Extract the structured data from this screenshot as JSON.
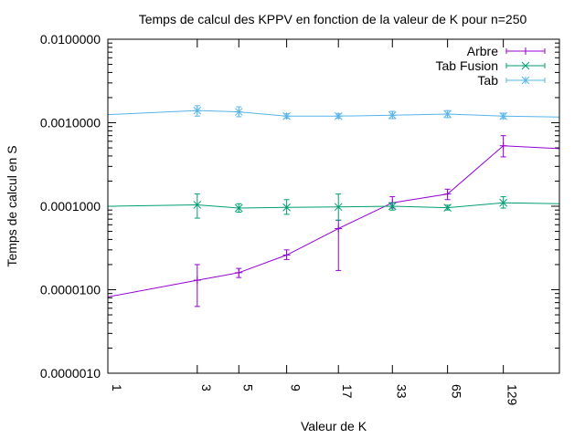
{
  "chart_data": {
    "type": "line",
    "title": "Temps de calcul des KPPV en fonction de la valeur de K pour n=250",
    "xlabel": "Valeur de K",
    "ylabel": "Temps de calcul en S",
    "x_scale": "log2",
    "y_scale": "log10",
    "xlim": [
      1,
      257
    ],
    "ylim": [
      1e-06,
      0.01
    ],
    "x_ticks": [
      {
        "value": 1,
        "label": "1"
      },
      {
        "value": 3,
        "label": "3"
      },
      {
        "value": 5,
        "label": "5"
      },
      {
        "value": 9,
        "label": "9"
      },
      {
        "value": 17,
        "label": "17"
      },
      {
        "value": 33,
        "label": "33"
      },
      {
        "value": 65,
        "label": "65"
      },
      {
        "value": 129,
        "label": "129"
      }
    ],
    "y_ticks": [
      {
        "value": 1e-06,
        "label": "0.0000010"
      },
      {
        "value": 1e-05,
        "label": "0.0000100"
      },
      {
        "value": 0.0001,
        "label": "0.0001000"
      },
      {
        "value": 0.001,
        "label": "0.0010000"
      },
      {
        "value": 0.01,
        "label": "0.0100000"
      }
    ],
    "legend_position": "top-right",
    "grid": false,
    "series": [
      {
        "name": "Arbre",
        "color": "#9400d3",
        "marker": "plus",
        "points": [
          {
            "x": 1,
            "y": 8.2e-06,
            "err": null
          },
          {
            "x": 3,
            "y": 1.3e-05,
            "err": [
              6.3e-06,
              2e-05
            ]
          },
          {
            "x": 5,
            "y": 1.6e-05,
            "err": [
              1.4e-05,
              1.8e-05
            ]
          },
          {
            "x": 9,
            "y": 2.6e-05,
            "err": [
              2.3e-05,
              3e-05
            ]
          },
          {
            "x": 17,
            "y": 5.4e-05,
            "err": [
              1.7e-05,
              6.8e-05
            ]
          },
          {
            "x": 33,
            "y": 0.00011,
            "err": [
              9.5e-05,
              0.00013
            ]
          },
          {
            "x": 65,
            "y": 0.00014,
            "err": [
              0.00012,
              0.00016
            ]
          },
          {
            "x": 129,
            "y": 0.00053,
            "err": [
              0.00039,
              0.0007
            ]
          },
          {
            "x": 257,
            "y": 0.00049,
            "err": null
          }
        ]
      },
      {
        "name": "Tab Fusion",
        "color": "#009e73",
        "marker": "cross",
        "points": [
          {
            "x": 1,
            "y": 0.0001,
            "err": null
          },
          {
            "x": 3,
            "y": 0.000104,
            "err": [
              7.2e-05,
              0.00014
            ]
          },
          {
            "x": 5,
            "y": 9.5e-05,
            "err": [
              8.5e-05,
              0.000107
            ]
          },
          {
            "x": 9,
            "y": 9.7e-05,
            "err": [
              8e-05,
              0.00012
            ]
          },
          {
            "x": 17,
            "y": 9.8e-05,
            "err": [
              6.8e-05,
              0.00014
            ]
          },
          {
            "x": 33,
            "y": 0.0001,
            "err": [
              9e-05,
              0.00011
            ]
          },
          {
            "x": 65,
            "y": 9.6e-05,
            "err": [
              9e-05,
              0.000103
            ]
          },
          {
            "x": 129,
            "y": 0.00011,
            "err": [
              9.5e-05,
              0.00013
            ]
          },
          {
            "x": 257,
            "y": 0.000107,
            "err": null
          }
        ]
      },
      {
        "name": "Tab",
        "color": "#56b4e9",
        "marker": "star",
        "points": [
          {
            "x": 1,
            "y": 0.00125,
            "err": null
          },
          {
            "x": 3,
            "y": 0.0014,
            "err": [
              0.0012,
              0.0016
            ]
          },
          {
            "x": 5,
            "y": 0.00135,
            "err": [
              0.00118,
              0.00155
            ]
          },
          {
            "x": 9,
            "y": 0.0012,
            "err": [
              0.00113,
              0.00128
            ]
          },
          {
            "x": 17,
            "y": 0.0012,
            "err": [
              0.00113,
              0.00128
            ]
          },
          {
            "x": 33,
            "y": 0.00123,
            "err": [
              0.00112,
              0.00137
            ]
          },
          {
            "x": 65,
            "y": 0.00127,
            "err": [
              0.00115,
              0.0014
            ]
          },
          {
            "x": 129,
            "y": 0.0012,
            "err": [
              0.00112,
              0.0013
            ]
          },
          {
            "x": 257,
            "y": 0.00117,
            "err": null
          }
        ]
      }
    ]
  }
}
